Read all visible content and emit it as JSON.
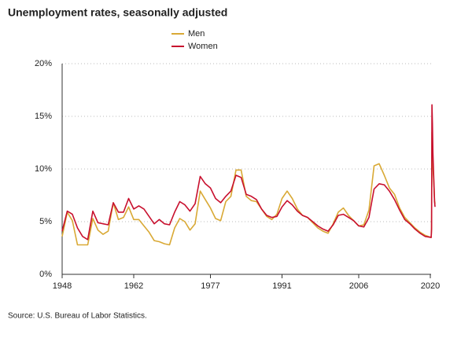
{
  "chart_data": {
    "type": "line",
    "title": "Unemployment rates, seasonally adjusted",
    "source": "Source: U.S. Bureau of Labor Statistics.",
    "x": [
      1948,
      1949,
      1950,
      1951,
      1952,
      1953,
      1954,
      1955,
      1956,
      1957,
      1958,
      1959,
      1960,
      1961,
      1962,
      1963,
      1964,
      1965,
      1966,
      1967,
      1968,
      1969,
      1970,
      1971,
      1972,
      1973,
      1974,
      1975,
      1976,
      1977,
      1978,
      1979,
      1980,
      1981,
      1982,
      1983,
      1984,
      1985,
      1986,
      1987,
      1988,
      1989,
      1990,
      1991,
      1992,
      1993,
      1994,
      1995,
      1996,
      1997,
      1998,
      1999,
      2000,
      2001,
      2002,
      2003,
      2004,
      2005,
      2006,
      2007,
      2008,
      2009,
      2010,
      2011,
      2012,
      2013,
      2014,
      2015,
      2016,
      2017,
      2018,
      2019,
      2020.17,
      2020.25,
      2020.33,
      2020.42,
      2020.5,
      2020.67,
      2020.83,
      2020.92
    ],
    "series": [
      {
        "name": "Men",
        "color": "#d9a935",
        "values": [
          3.6,
          5.9,
          5.1,
          2.8,
          2.8,
          2.8,
          5.3,
          4.2,
          3.8,
          4.1,
          6.8,
          5.2,
          5.4,
          6.4,
          5.2,
          5.2,
          4.6,
          4.0,
          3.2,
          3.1,
          2.9,
          2.8,
          4.4,
          5.3,
          5.0,
          4.2,
          4.8,
          7.9,
          7.1,
          6.3,
          5.3,
          5.1,
          6.9,
          7.4,
          9.9,
          9.9,
          7.4,
          7.0,
          6.9,
          6.2,
          5.5,
          5.2,
          5.7,
          7.2,
          7.9,
          7.2,
          6.2,
          5.6,
          5.4,
          4.9,
          4.4,
          4.1,
          3.9,
          4.8,
          5.9,
          6.3,
          5.6,
          5.1,
          4.6,
          4.7,
          6.1,
          10.3,
          10.5,
          9.4,
          8.2,
          7.6,
          6.3,
          5.4,
          4.9,
          4.4,
          4.0,
          3.7,
          3.5,
          4.4,
          13.5,
          12.6,
          10.4,
          8.8,
          7.0,
          6.7
        ]
      },
      {
        "name": "Women",
        "color": "#c8102e",
        "values": [
          4.1,
          6.0,
          5.7,
          4.4,
          3.6,
          3.3,
          6.0,
          4.9,
          4.8,
          4.7,
          6.8,
          5.9,
          5.9,
          7.2,
          6.2,
          6.5,
          6.2,
          5.5,
          4.8,
          5.2,
          4.8,
          4.7,
          5.9,
          6.9,
          6.6,
          6.0,
          6.7,
          9.3,
          8.6,
          8.2,
          7.2,
          6.8,
          7.4,
          7.9,
          9.4,
          9.2,
          7.6,
          7.4,
          7.1,
          6.2,
          5.6,
          5.4,
          5.5,
          6.4,
          7.0,
          6.6,
          6.0,
          5.6,
          5.4,
          5.0,
          4.6,
          4.3,
          4.1,
          4.7,
          5.6,
          5.7,
          5.4,
          5.1,
          4.6,
          4.5,
          5.4,
          8.1,
          8.6,
          8.5,
          7.9,
          7.1,
          6.1,
          5.2,
          4.8,
          4.3,
          3.9,
          3.6,
          3.5,
          4.3,
          16.1,
          14.3,
          11.6,
          9.1,
          6.9,
          6.4
        ]
      }
    ],
    "xlim": [
      1948,
      2021
    ],
    "xticks": [
      1948,
      1962,
      1977,
      1991,
      2006,
      2020
    ],
    "ylim": [
      0,
      20
    ],
    "yticks": [
      {
        "value": 0,
        "label": "0%"
      },
      {
        "value": 5,
        "label": "5%"
      },
      {
        "value": 10,
        "label": "10%"
      },
      {
        "value": 15,
        "label": "15%"
      },
      {
        "value": 20,
        "label": "20%"
      }
    ],
    "grid": true
  }
}
